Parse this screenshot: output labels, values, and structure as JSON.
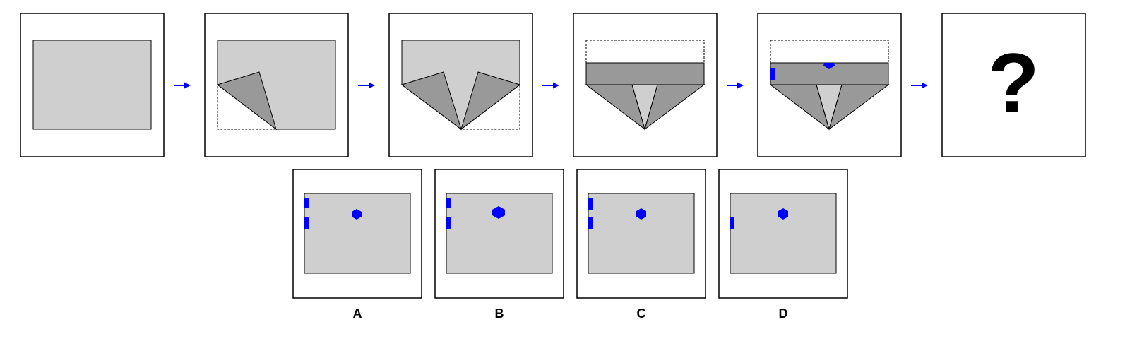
{
  "question": {
    "unknown_symbol": "?"
  },
  "options": [
    {
      "label": "A"
    },
    {
      "label": "B"
    },
    {
      "label": "C"
    },
    {
      "label": "D"
    }
  ],
  "colors": {
    "paper": "#cfcfcf",
    "folded_flap": "#999999",
    "punched_hole": "#0000ff",
    "arrow": "#0000ff",
    "frame": "#000000"
  }
}
